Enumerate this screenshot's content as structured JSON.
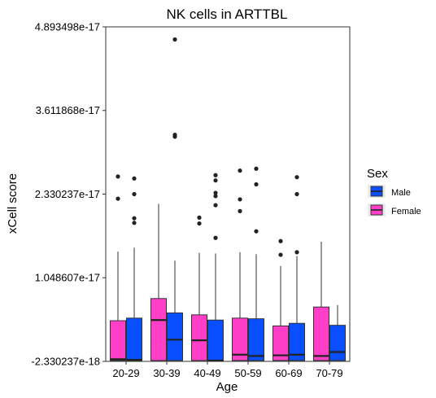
{
  "chart_data": {
    "type": "boxplot",
    "title": "NK cells in ARTTBL",
    "xlabel": "Age",
    "ylabel": "xCell score",
    "categories": [
      "20-29",
      "30-39",
      "40-49",
      "50-59",
      "60-69",
      "70-79"
    ],
    "ylim": [
      -2.330237e-18,
      4.893498e-17
    ],
    "yticks": [
      "4.893498e-17",
      "3.611868e-17",
      "2.330237e-17",
      "1.048607e-17",
      "-2.330237e-18"
    ],
    "ytick_values": [
      4.893498e-17,
      3.611868e-17,
      2.330237e-17,
      1.048607e-17,
      -2.330237e-18
    ],
    "legend": {
      "title": "Sex",
      "position": "right"
    },
    "grid": false,
    "series": [
      {
        "name": "Male",
        "color": "#0a4fff",
        "boxes": [
          {
            "lower": -2.2e-18,
            "q1": -2.2e-18,
            "median": -2.1e-18,
            "q3": 4.3e-18,
            "upper": 1.51e-17,
            "outliers": [
              2.57e-17,
              2.33e-17,
              1.96e-17,
              1.89e-17
            ]
          },
          {
            "lower": -2.2e-18,
            "q1": -2.2e-18,
            "median": 1e-18,
            "q3": 5.1e-18,
            "upper": 1.31e-17,
            "outliers": [
              4.7e-17,
              3.24e-17,
              3.21e-17
            ]
          },
          {
            "lower": -2.2e-18,
            "q1": -2.2e-18,
            "median": -2.2e-18,
            "q3": 4e-18,
            "upper": 1.42e-17,
            "outliers": [
              2.62e-17,
              2.54e-17,
              2.35e-17,
              2.3e-17,
              2.16e-17,
              1.66e-17
            ]
          },
          {
            "lower": -2.2e-18,
            "q1": -2.2e-18,
            "median": -1.5e-18,
            "q3": 4.2e-18,
            "upper": 1.41e-17,
            "outliers": [
              2.72e-17,
              2.48e-17,
              1.76e-17
            ]
          },
          {
            "lower": -2.2e-18,
            "q1": -2.2e-18,
            "median": -1.3e-18,
            "q3": 3.5e-18,
            "upper": 1.38e-17,
            "outliers": [
              2.59e-17,
              2.33e-17,
              1.44e-17
            ]
          },
          {
            "lower": -2.2e-18,
            "q1": -2.2e-18,
            "median": -9e-19,
            "q3": 3.2e-18,
            "upper": 6.3e-18,
            "outliers": []
          }
        ]
      },
      {
        "name": "Female",
        "color": "#ff3fc8",
        "boxes": [
          {
            "lower": -2.2e-18,
            "q1": -2.2e-18,
            "median": -2e-18,
            "q3": 3.9e-18,
            "upper": 1.45e-17,
            "outliers": [
              2.6e-17,
              2.26e-17
            ]
          },
          {
            "lower": -2.2e-18,
            "q1": -2.2e-18,
            "median": 4e-18,
            "q3": 7.3e-18,
            "upper": 2.18e-17,
            "outliers": []
          },
          {
            "lower": -2.2e-18,
            "q1": -2.2e-18,
            "median": 9e-19,
            "q3": 4.8e-18,
            "upper": 1.43e-17,
            "outliers": [
              1.97e-17,
              1.88e-17
            ]
          },
          {
            "lower": -2.2e-18,
            "q1": -2.2e-18,
            "median": -1.3e-18,
            "q3": 4.3e-18,
            "upper": 1.44e-17,
            "outliers": [
              2.69e-17,
              2.25e-17,
              2.07e-17
            ]
          },
          {
            "lower": -2.2e-18,
            "q1": -2.2e-18,
            "median": -1.4e-18,
            "q3": 3.1e-18,
            "upper": 1.23e-17,
            "outliers": [
              1.61e-17,
              1.4e-17
            ]
          },
          {
            "lower": -2.2e-18,
            "q1": -2.2e-18,
            "median": -1.5e-18,
            "q3": 6e-18,
            "upper": 1.6e-17,
            "outliers": []
          }
        ]
      }
    ]
  }
}
